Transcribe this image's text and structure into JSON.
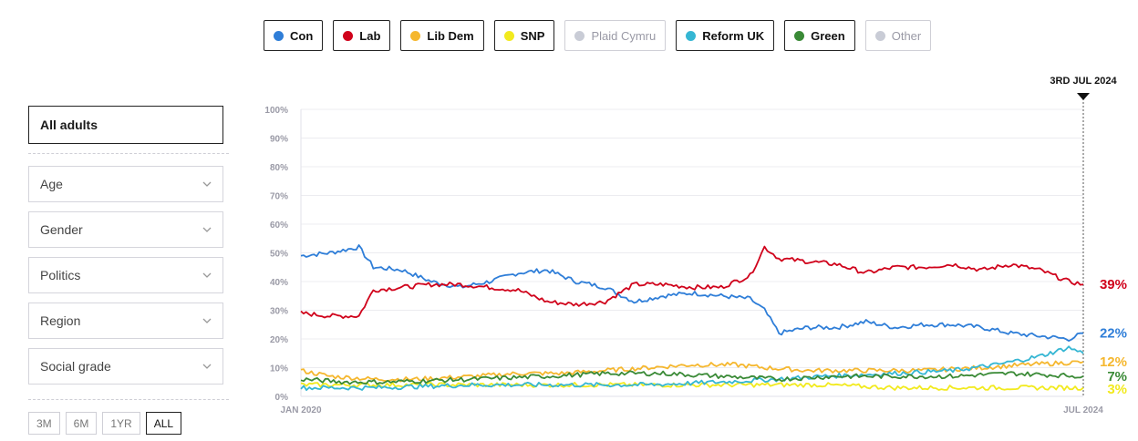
{
  "legend": [
    {
      "name": "Con",
      "color": "#2f7ed8",
      "active": true
    },
    {
      "name": "Lab",
      "color": "#d0021b",
      "active": true
    },
    {
      "name": "Lib Dem",
      "color": "#f5b72e",
      "active": true
    },
    {
      "name": "SNP",
      "color": "#f2ea1e",
      "active": true
    },
    {
      "name": "Plaid Cymru",
      "color": "#c9ccd6",
      "active": false
    },
    {
      "name": "Reform UK",
      "color": "#35b6d3",
      "active": true
    },
    {
      "name": "Green",
      "color": "#3a8a36",
      "active": true
    },
    {
      "name": "Other",
      "color": "#c9ccd6",
      "active": false
    }
  ],
  "filters": {
    "audience": "All adults",
    "dropdowns": [
      "Age",
      "Gender",
      "Politics",
      "Region",
      "Social grade"
    ]
  },
  "ranges": [
    {
      "label": "3M",
      "active": false
    },
    {
      "label": "6M",
      "active": false
    },
    {
      "label": "1YR",
      "active": false
    },
    {
      "label": "ALL",
      "active": true
    }
  ],
  "chart_data": {
    "type": "line",
    "y_ticks": [
      "0%",
      "10%",
      "20%",
      "30%",
      "40%",
      "50%",
      "60%",
      "70%",
      "80%",
      "90%",
      "100%"
    ],
    "ylim": [
      0,
      100
    ],
    "x_labels": [
      "JAN 2020",
      "JUL 2024"
    ],
    "xlim": [
      "2020-01",
      "2024-07"
    ],
    "grid": true,
    "marker_label": "3RD JUL 2024",
    "series": [
      {
        "name": "Con",
        "color": "#2f7ed8",
        "end_label": "22%",
        "points": [
          [
            "2020-01",
            49
          ],
          [
            "2020-03",
            50
          ],
          [
            "2020-05",
            52
          ],
          [
            "2020-06",
            45
          ],
          [
            "2020-08",
            44
          ],
          [
            "2020-10",
            40
          ],
          [
            "2020-12",
            38
          ],
          [
            "2021-02",
            40
          ],
          [
            "2021-04",
            43
          ],
          [
            "2021-06",
            44
          ],
          [
            "2021-08",
            40
          ],
          [
            "2021-10",
            38
          ],
          [
            "2021-12",
            33
          ],
          [
            "2022-02",
            35
          ],
          [
            "2022-04",
            36
          ],
          [
            "2022-06",
            35
          ],
          [
            "2022-08",
            34
          ],
          [
            "2022-09",
            30
          ],
          [
            "2022-10",
            22
          ],
          [
            "2022-12",
            24
          ],
          [
            "2023-02",
            24
          ],
          [
            "2023-04",
            26
          ],
          [
            "2023-06",
            24
          ],
          [
            "2023-08",
            25
          ],
          [
            "2023-10",
            25
          ],
          [
            "2023-12",
            24
          ],
          [
            "2024-02",
            22
          ],
          [
            "2024-04",
            21
          ],
          [
            "2024-06",
            20
          ],
          [
            "2024-07",
            22
          ]
        ]
      },
      {
        "name": "Lab",
        "color": "#d0021b",
        "end_label": "39%",
        "points": [
          [
            "2020-01",
            29
          ],
          [
            "2020-03",
            28
          ],
          [
            "2020-05",
            28
          ],
          [
            "2020-06",
            37
          ],
          [
            "2020-08",
            38
          ],
          [
            "2020-10",
            39
          ],
          [
            "2020-12",
            39
          ],
          [
            "2021-02",
            38
          ],
          [
            "2021-04",
            37
          ],
          [
            "2021-06",
            33
          ],
          [
            "2021-08",
            32
          ],
          [
            "2021-10",
            33
          ],
          [
            "2021-12",
            39
          ],
          [
            "2022-02",
            39
          ],
          [
            "2022-04",
            38
          ],
          [
            "2022-06",
            38
          ],
          [
            "2022-08",
            42
          ],
          [
            "2022-09",
            52
          ],
          [
            "2022-10",
            48
          ],
          [
            "2022-12",
            47
          ],
          [
            "2023-02",
            46
          ],
          [
            "2023-04",
            43
          ],
          [
            "2023-06",
            45
          ],
          [
            "2023-08",
            45
          ],
          [
            "2023-10",
            46
          ],
          [
            "2023-12",
            44
          ],
          [
            "2024-02",
            46
          ],
          [
            "2024-04",
            44
          ],
          [
            "2024-06",
            40
          ],
          [
            "2024-07",
            39
          ]
        ]
      },
      {
        "name": "Lib Dem",
        "color": "#f5b72e",
        "end_label": "12%",
        "points": [
          [
            "2020-01",
            9
          ],
          [
            "2020-03",
            7
          ],
          [
            "2020-06",
            6
          ],
          [
            "2020-09",
            6
          ],
          [
            "2021-01",
            7
          ],
          [
            "2021-04",
            8
          ],
          [
            "2021-07",
            8
          ],
          [
            "2021-10",
            9
          ],
          [
            "2022-01",
            10
          ],
          [
            "2022-04",
            11
          ],
          [
            "2022-07",
            11
          ],
          [
            "2022-09",
            10
          ],
          [
            "2022-12",
            9
          ],
          [
            "2023-04",
            9
          ],
          [
            "2023-08",
            9
          ],
          [
            "2023-12",
            10
          ],
          [
            "2024-03",
            11
          ],
          [
            "2024-07",
            12
          ]
        ]
      },
      {
        "name": "SNP",
        "color": "#f2ea1e",
        "end_label": "3%",
        "points": [
          [
            "2020-01",
            4
          ],
          [
            "2020-06",
            4
          ],
          [
            "2021-01",
            4
          ],
          [
            "2021-06",
            4
          ],
          [
            "2022-01",
            4
          ],
          [
            "2022-06",
            4
          ],
          [
            "2023-01",
            4
          ],
          [
            "2023-06",
            3
          ],
          [
            "2024-01",
            3
          ],
          [
            "2024-07",
            3
          ]
        ]
      },
      {
        "name": "Reform UK",
        "color": "#35b6d3",
        "end_label": "",
        "points": [
          [
            "2020-01",
            3
          ],
          [
            "2020-06",
            3
          ],
          [
            "2021-01",
            4
          ],
          [
            "2021-06",
            4
          ],
          [
            "2022-01",
            4
          ],
          [
            "2022-06",
            5
          ],
          [
            "2022-10",
            6
          ],
          [
            "2023-01",
            7
          ],
          [
            "2023-06",
            8
          ],
          [
            "2023-10",
            9
          ],
          [
            "2024-01",
            11
          ],
          [
            "2024-04",
            14
          ],
          [
            "2024-06",
            17
          ],
          [
            "2024-07",
            15
          ]
        ]
      },
      {
        "name": "Green",
        "color": "#3a8a36",
        "end_label": "7%",
        "points": [
          [
            "2020-01",
            6
          ],
          [
            "2020-04",
            5
          ],
          [
            "2020-07",
            5
          ],
          [
            "2021-01",
            6
          ],
          [
            "2021-06",
            7
          ],
          [
            "2021-10",
            8
          ],
          [
            "2022-02",
            8
          ],
          [
            "2022-06",
            7
          ],
          [
            "2022-10",
            6
          ],
          [
            "2023-02",
            7
          ],
          [
            "2023-06",
            7
          ],
          [
            "2023-10",
            7
          ],
          [
            "2024-02",
            8
          ],
          [
            "2024-07",
            7
          ]
        ]
      }
    ]
  }
}
